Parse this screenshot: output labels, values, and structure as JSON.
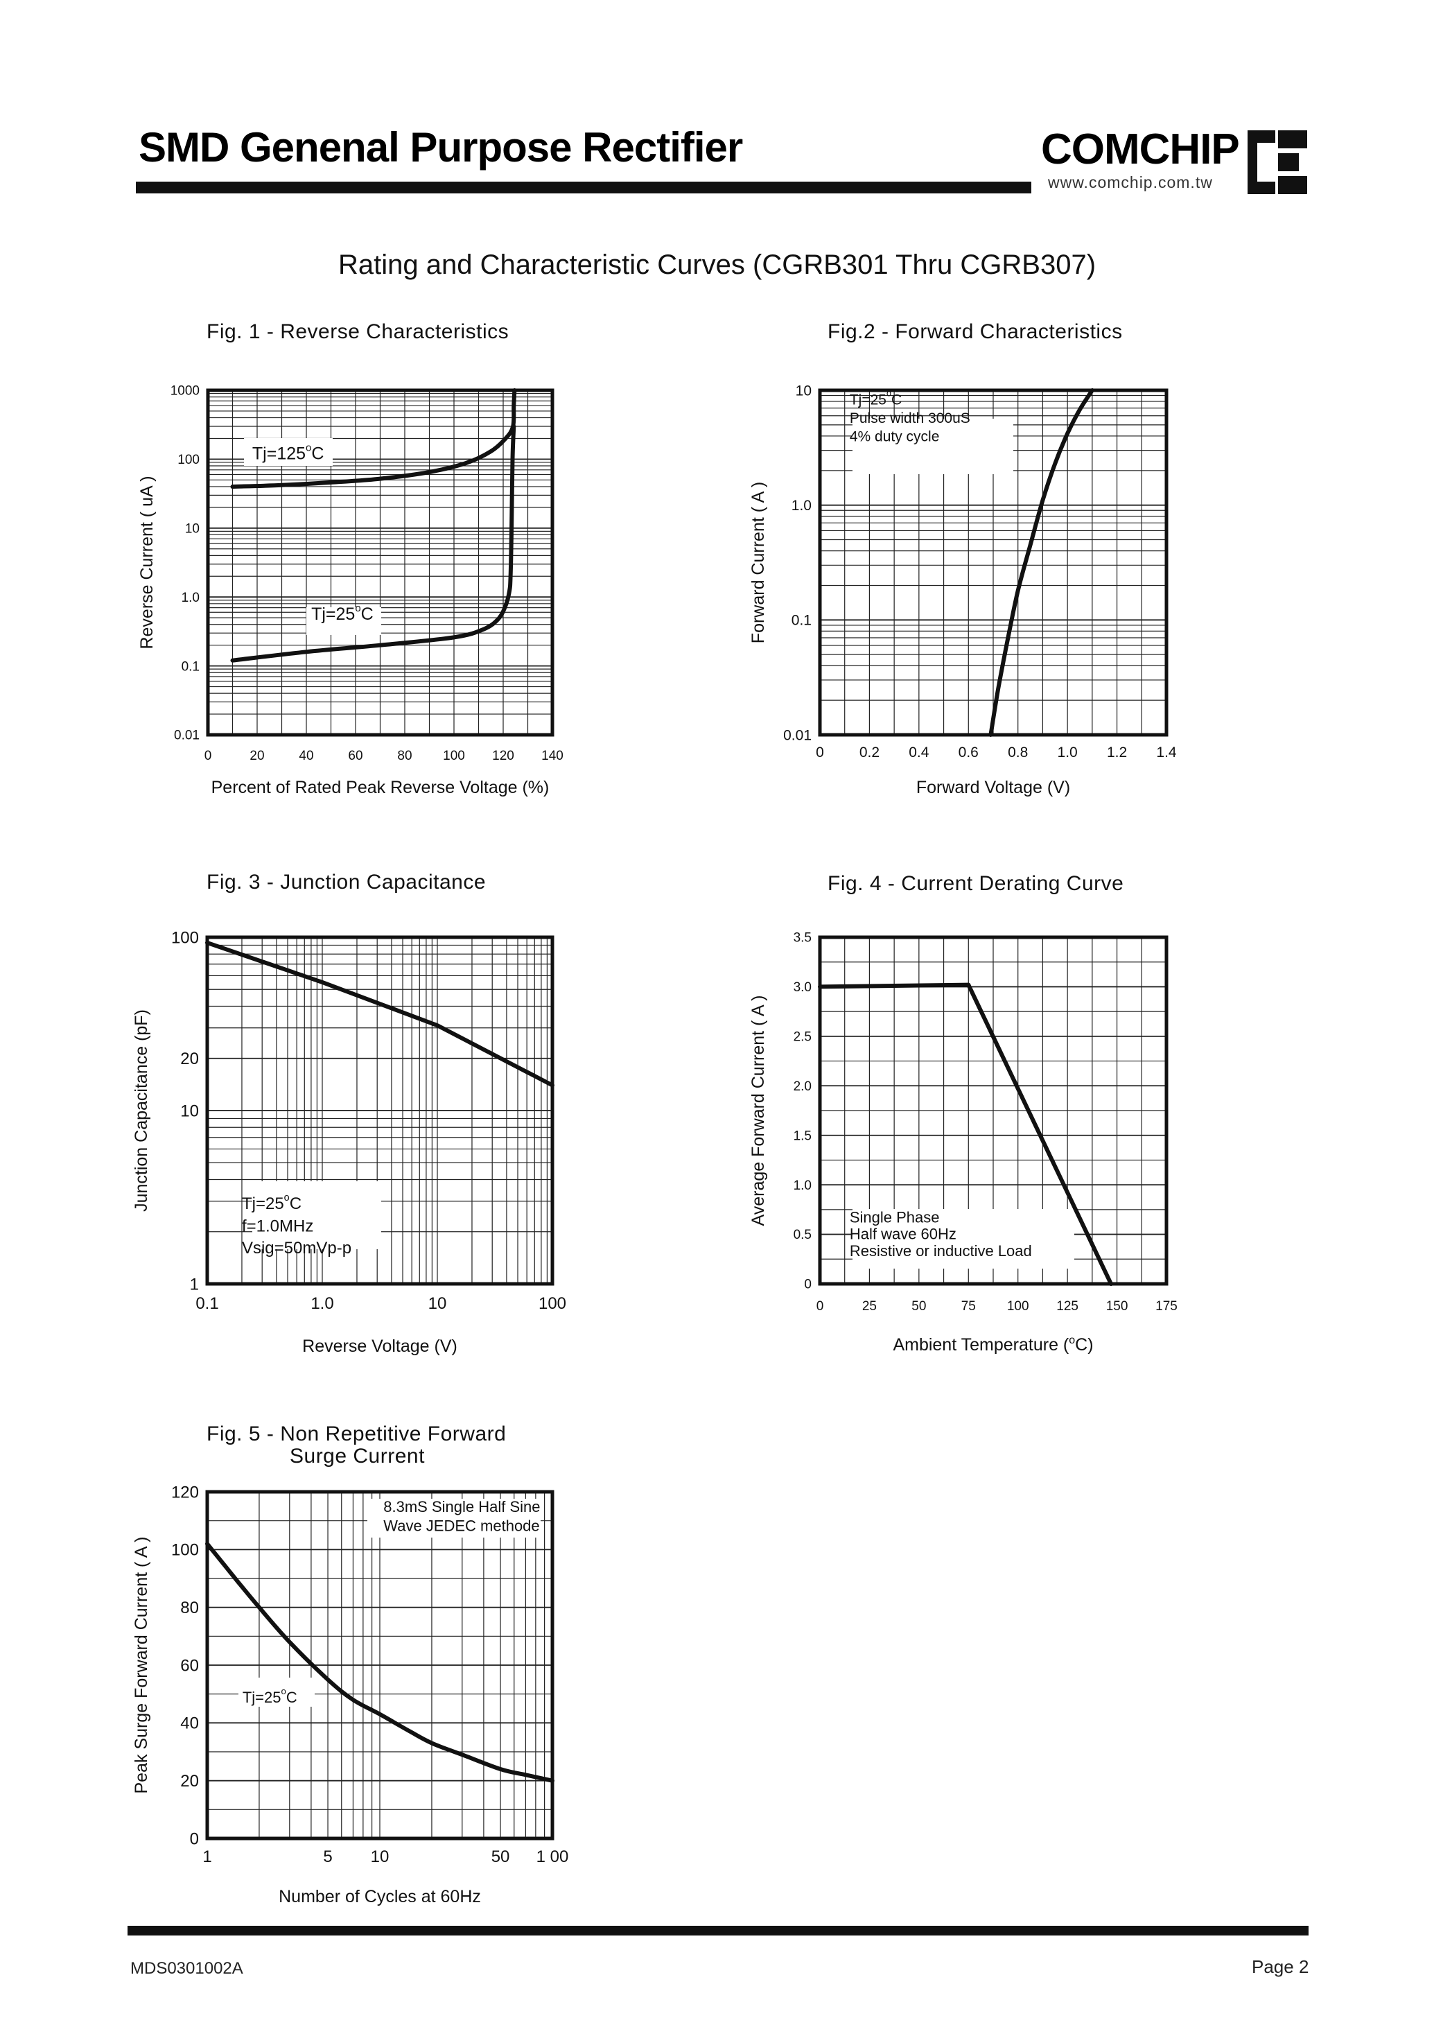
{
  "header": {
    "title": "SMD Genenal Purpose Rectifier",
    "logo_text": "COMCHIP",
    "logo_url": "www.comchip.com.tw",
    "logo_icon": "comchip-ce-mark-icon"
  },
  "section_title": "Rating and Characteristic Curves (CGRB301 Thru CGRB307)",
  "footer": {
    "doc_id": "MDS0301002A",
    "page": "Page 2"
  },
  "chart_data": [
    {
      "id": "fig1",
      "type": "line",
      "title": "Fig. 1 -  Reverse Characteristics",
      "xlabel": "Percent of Rated Peak Reverse Voltage (%)",
      "ylabel": "Reverse Current ( uA )",
      "xscale": "linear",
      "yscale": "log",
      "xlim": [
        0,
        140
      ],
      "ylim": [
        0.01,
        1000
      ],
      "xticks": [
        0,
        20,
        40,
        60,
        80,
        100,
        120,
        140
      ],
      "xtick_labels": [
        "0",
        "20",
        "40",
        "60",
        "80",
        "100",
        "120",
        "140"
      ],
      "yticks": [
        0.01,
        0.1,
        1,
        10,
        100,
        1000
      ],
      "ytick_labels": [
        "0.01",
        "0.1",
        "1.0",
        "10",
        "100",
        "1000"
      ],
      "grid": true,
      "series": [
        {
          "name": "Tj=125°C",
          "x": [
            10,
            30,
            50,
            70,
            90,
            105,
            115,
            121,
            124,
            124.3,
            124.6
          ],
          "y": [
            40,
            42,
            46,
            52,
            65,
            88,
            130,
            200,
            300,
            600,
            1000
          ]
        },
        {
          "name": "Tj=25°C",
          "x": [
            10,
            40,
            70,
            100,
            112,
            118,
            121,
            122.5,
            123,
            123.4,
            123.8,
            124.3
          ],
          "y": [
            0.12,
            0.16,
            0.2,
            0.26,
            0.34,
            0.48,
            0.75,
            1.2,
            2,
            10,
            100,
            300
          ]
        }
      ],
      "annotations": [
        {
          "text": "Tj=125",
          "sup": "o",
          "unit": "C",
          "x": 18,
          "y": 100
        },
        {
          "text": "Tj=25",
          "sup": "o",
          "unit": "C",
          "x": 42,
          "y": 0.47
        }
      ]
    },
    {
      "id": "fig2",
      "type": "line",
      "title": "Fig.2 -  Forward Characteristics",
      "xlabel": "Forward Voltage (V)",
      "ylabel": "Forward Current ( A )",
      "xscale": "linear",
      "yscale": "log",
      "xlim": [
        0,
        1.4
      ],
      "ylim": [
        0.01,
        10
      ],
      "xticks": [
        0,
        0.2,
        0.4,
        0.6,
        0.8,
        1.0,
        1.2,
        1.4
      ],
      "xtick_labels": [
        "0",
        "0.2",
        "0.4",
        "0.6",
        "0.8",
        "1.0",
        "1.2",
        "1.4"
      ],
      "yticks": [
        0.01,
        0.1,
        1,
        10
      ],
      "ytick_labels": [
        "0.01",
        "0.1",
        "1.0",
        "10"
      ],
      "grid": true,
      "series": [
        {
          "name": "Tj=25°C",
          "x": [
            0.69,
            0.72,
            0.76,
            0.8,
            0.85,
            0.9,
            0.95,
            1.0,
            1.05,
            1.1
          ],
          "y": [
            0.01,
            0.025,
            0.07,
            0.18,
            0.45,
            1.1,
            2.3,
            4.2,
            6.8,
            10
          ]
        }
      ],
      "annotations": [
        {
          "text": "Tj=25",
          "sup": "o",
          "unit": "C",
          "x": 0.12,
          "y": 7.5
        },
        {
          "text": "Pulse width 300uS",
          "x": 0.12,
          "y": 5.2
        },
        {
          "text": "4% duty cycle",
          "x": 0.12,
          "y": 3.6
        }
      ]
    },
    {
      "id": "fig3",
      "type": "line",
      "title": "Fig. 3 -  Junction Capacitance",
      "xlabel": "Reverse Voltage (V)",
      "ylabel": "Junction Capacitance  (pF)",
      "xscale": "log",
      "yscale": "log",
      "xlim": [
        0.1,
        100
      ],
      "ylim": [
        1,
        100
      ],
      "xticks": [
        0.1,
        1,
        10,
        100
      ],
      "xtick_labels": [
        "0.1",
        "1.0",
        "10",
        "100"
      ],
      "yticks": [
        1,
        10,
        20,
        100
      ],
      "ytick_labels": [
        "1",
        "10",
        "20",
        "100"
      ],
      "grid": true,
      "series": [
        {
          "name": "Tj=25°C",
          "x": [
            0.1,
            1,
            10,
            100
          ],
          "y": [
            93,
            55,
            31,
            14
          ]
        }
      ],
      "annotations": [
        {
          "text": "Tj=25",
          "sup": "o",
          "unit": "C",
          "x": 0.2,
          "y": 2.7
        },
        {
          "text": "f=1.0MHz",
          "x": 0.2,
          "y": 2.0
        },
        {
          "text": "Vsig=50mVp-p",
          "x": 0.2,
          "y": 1.5
        }
      ]
    },
    {
      "id": "fig4",
      "type": "line",
      "title": "Fig. 4 - Current Derating Curve",
      "xlabel": "Ambient Temperature (",
      "xlabel_sup": "o",
      "xlabel_end": "C)",
      "ylabel": "Average Forward Current ( A )",
      "xscale": "linear",
      "yscale": "linear",
      "xlim": [
        0,
        175
      ],
      "ylim": [
        0,
        3.5
      ],
      "xticks": [
        0,
        25,
        50,
        75,
        100,
        125,
        150,
        175
      ],
      "xtick_labels": [
        "0",
        "25",
        "50",
        "75",
        "100",
        "125",
        "150",
        "175"
      ],
      "yticks": [
        0,
        0.5,
        1.0,
        1.5,
        2.0,
        2.5,
        3.0,
        3.5
      ],
      "ytick_labels": [
        "0",
        "0.5",
        "1.0",
        "1.5",
        "2.0",
        "2.5",
        "3.0",
        "3.5"
      ],
      "grid": true,
      "series": [
        {
          "name": "Single Phase Half wave 60Hz Resistive or inductive Load",
          "x": [
            0,
            75,
            147
          ],
          "y": [
            3.0,
            3.02,
            0
          ]
        }
      ],
      "annotations": [
        {
          "text": "Single Phase",
          "x": 15,
          "y": 0.62
        },
        {
          "text": "Half wave 60Hz",
          "x": 15,
          "y": 0.45
        },
        {
          "text": "Resistive or inductive Load",
          "x": 15,
          "y": 0.28
        }
      ]
    },
    {
      "id": "fig5",
      "type": "line",
      "title": "Fig. 5 -  Non Repetitive Forward",
      "title_line2": "Surge Current",
      "xlabel": "Number of Cycles at 60Hz",
      "ylabel": "Peak Surge Forward Current ( A )",
      "xscale": "log",
      "yscale": "linear",
      "xlim": [
        1,
        100
      ],
      "ylim": [
        0,
        120
      ],
      "xticks": [
        1,
        5,
        10,
        50,
        100
      ],
      "xtick_labels": [
        "1",
        "5",
        "10",
        "50",
        "1 00"
      ],
      "yticks": [
        0,
        20,
        40,
        60,
        80,
        100,
        120
      ],
      "ytick_labels": [
        "0",
        "20",
        "40",
        "60",
        "80",
        "100",
        "120"
      ],
      "grid": true,
      "series": [
        {
          "name": "Tj=25°C",
          "x": [
            1,
            1.5,
            2,
            3,
            5,
            7,
            10,
            15,
            20,
            30,
            50,
            70,
            100
          ],
          "y": [
            102,
            89,
            80,
            68,
            55,
            48,
            43,
            37,
            33,
            29,
            24,
            22,
            20
          ]
        }
      ],
      "annotations": [
        {
          "text": "8.3mS Single Half Sine",
          "x": 10.5,
          "y": 113
        },
        {
          "text": "Wave JEDEC methode",
          "x": 10.5,
          "y": 106.5
        },
        {
          "text": "Tj=25",
          "sup": "o",
          "unit": "C",
          "x": 1.6,
          "y": 47
        }
      ]
    }
  ]
}
